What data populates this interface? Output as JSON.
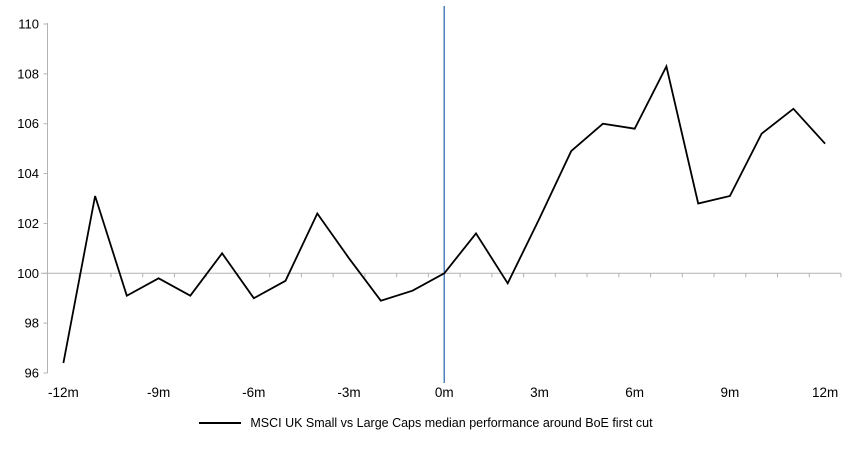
{
  "chart_data": {
    "type": "line",
    "title": "",
    "xlabel": "",
    "ylabel": "",
    "x_months": [
      -12,
      -11,
      -10,
      -9,
      -8,
      -7,
      -6,
      -5,
      -4,
      -3,
      -2,
      -1,
      0,
      1,
      2,
      3,
      4,
      5,
      6,
      7,
      8,
      9,
      10,
      11,
      12
    ],
    "series": [
      {
        "name": "MSCI UK Small vs Large Caps median performance around BoE first cut",
        "color": "#000000",
        "values": [
          96.4,
          103.1,
          99.1,
          99.8,
          99.1,
          100.8,
          99.0,
          99.7,
          102.4,
          100.6,
          98.9,
          99.3,
          100.0,
          101.6,
          99.6,
          102.2,
          104.9,
          106.0,
          105.8,
          108.3,
          102.8,
          103.1,
          105.6,
          106.6,
          105.2
        ]
      }
    ],
    "y_ticks": [
      96,
      98,
      100,
      102,
      104,
      106,
      108,
      110
    ],
    "ylim": [
      96,
      110
    ],
    "xlim_months": [
      -12,
      12
    ],
    "x_tick_label_months": [
      -12,
      -9,
      -6,
      -3,
      0,
      3,
      6,
      9,
      12
    ],
    "x_tick_labels": [
      "-12m",
      "-9m",
      "-6m",
      "-3m",
      "0m",
      "3m",
      "6m",
      "9m",
      "12m"
    ],
    "x_minor_tick_interval_months": 1,
    "category_axis_at_value": 100,
    "event_line": {
      "x_month": 0,
      "color": "#4f81bd"
    },
    "axis_color": "#b3b3b3",
    "tick_label_color": "#000000",
    "grid": "off",
    "legend": {
      "position": "bottom",
      "label": "MSCI UK Small vs Large Caps median performance around BoE first cut"
    }
  }
}
